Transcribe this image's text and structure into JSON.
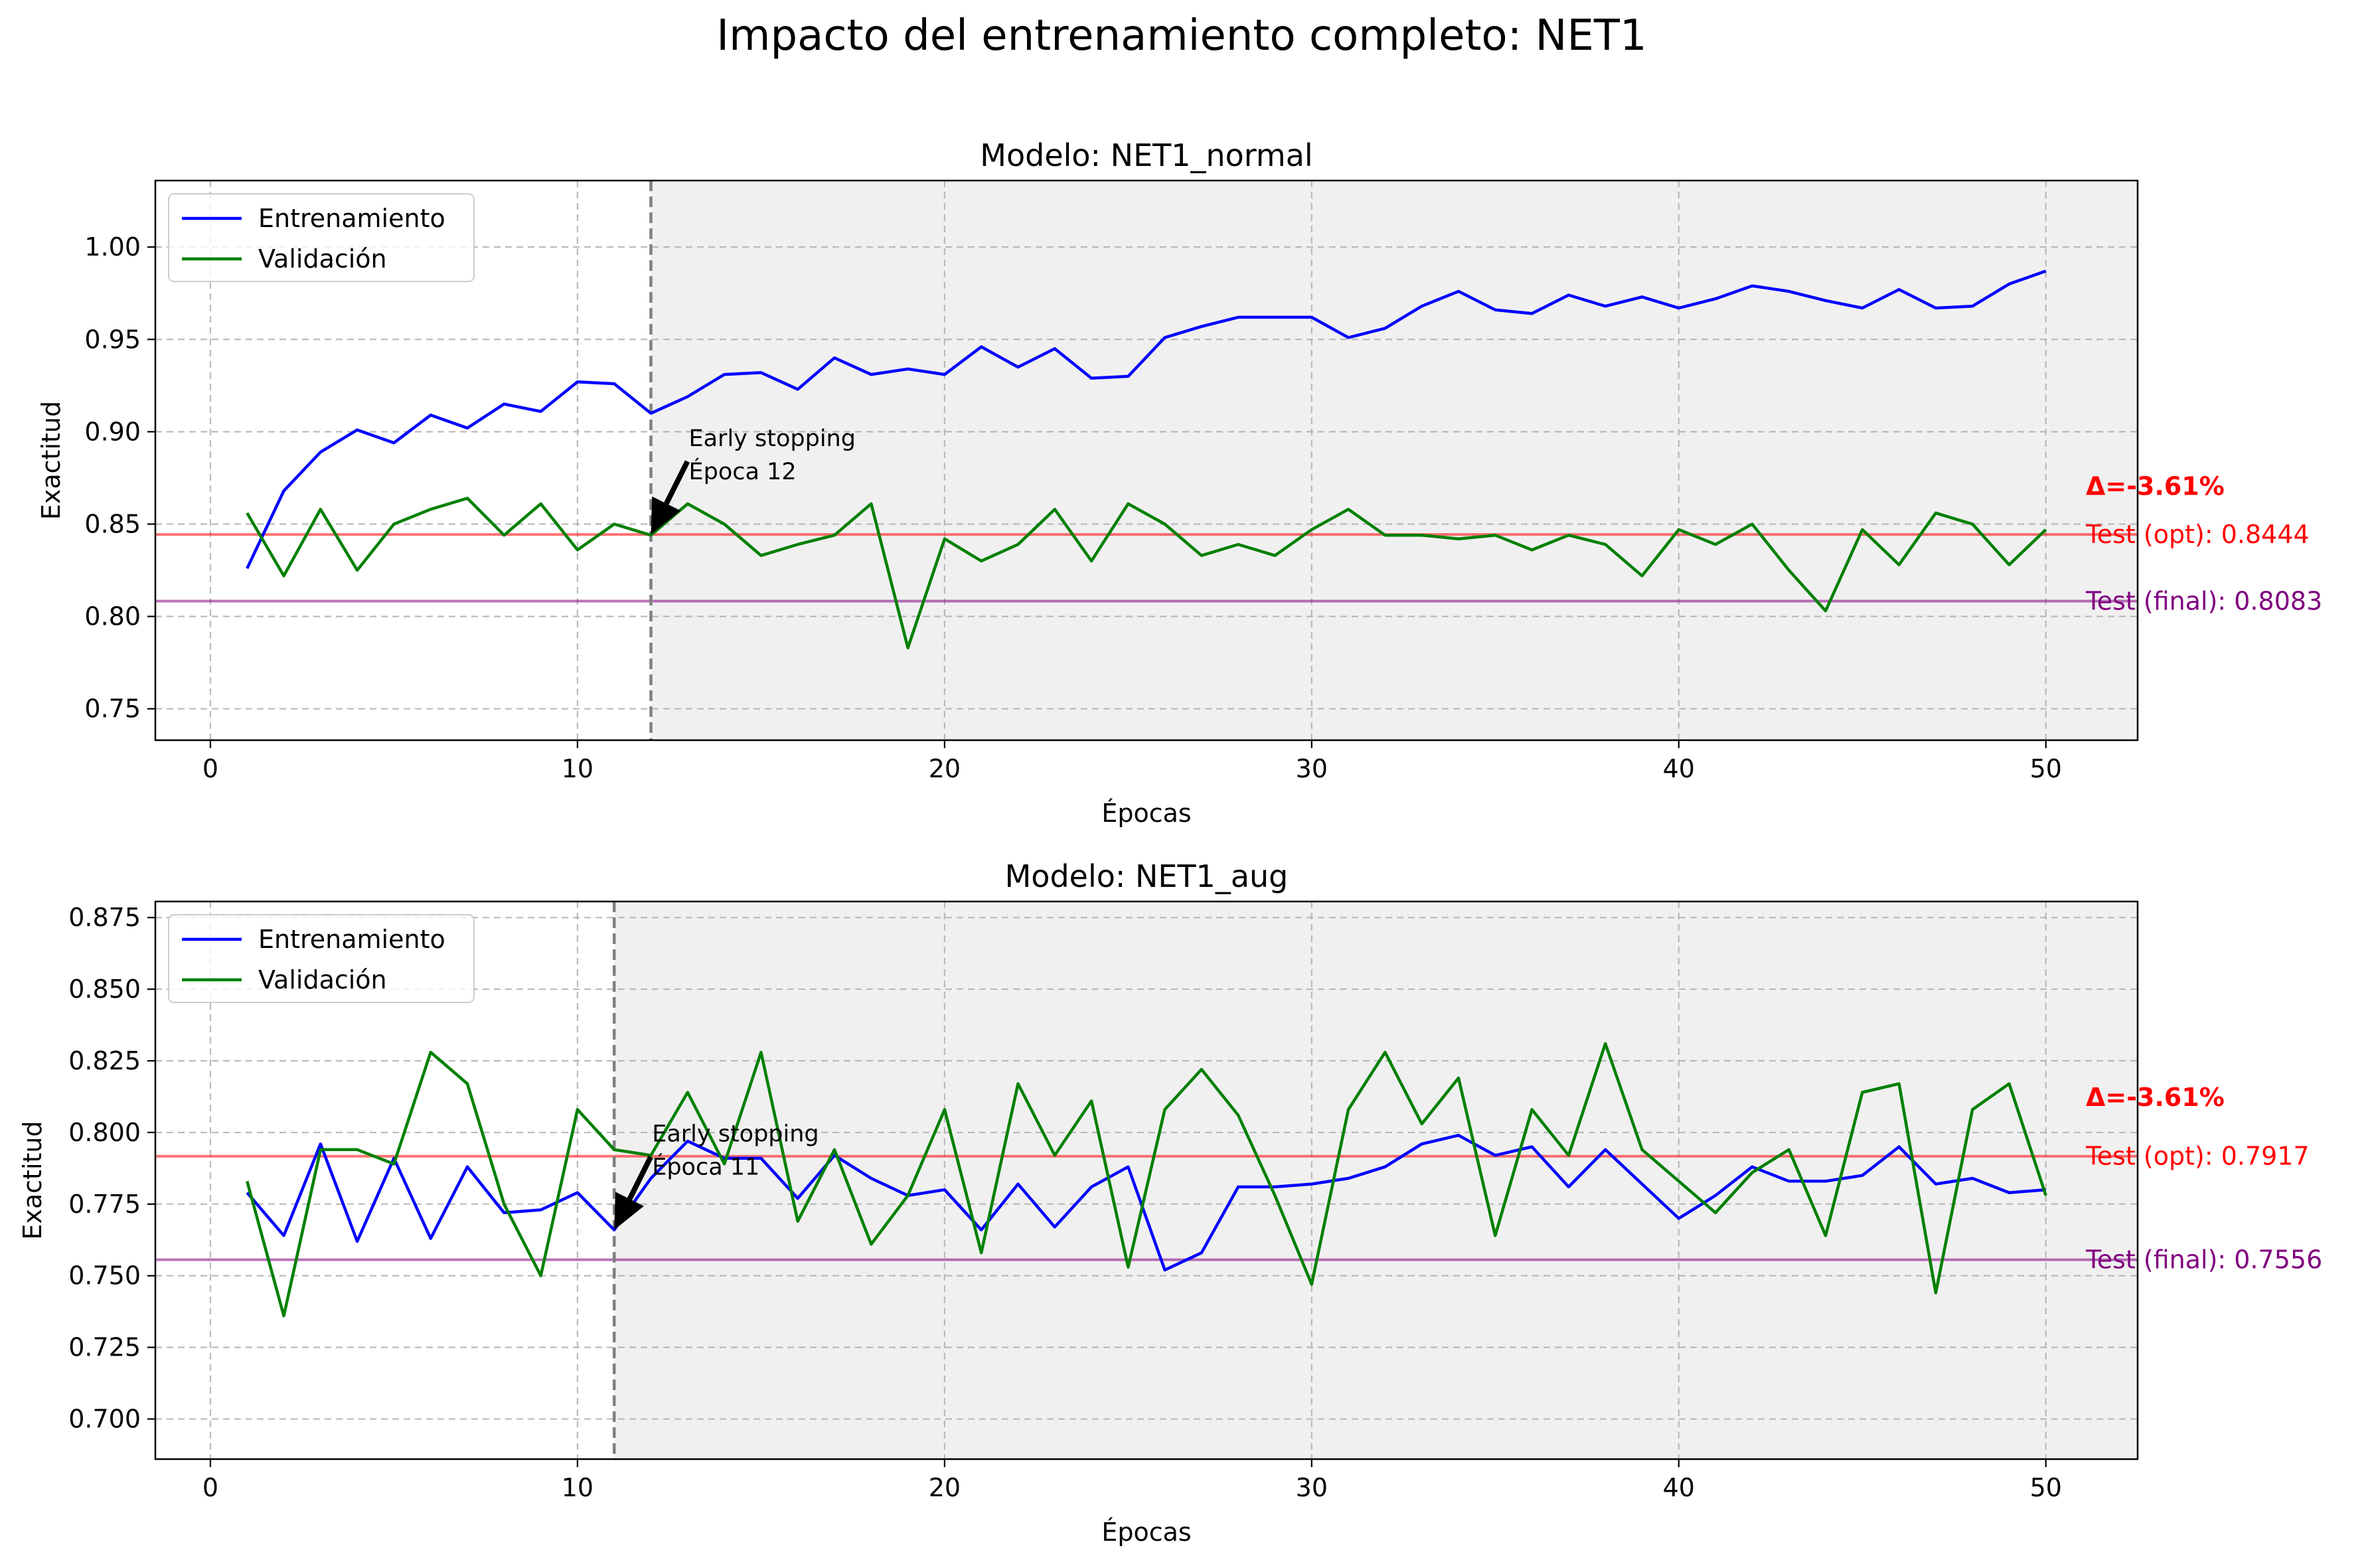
{
  "figure_title": "Impacto del entrenamiento completo: NET1",
  "colors": {
    "train": "#0000ff",
    "val": "#008000",
    "test_opt": "#ff0000",
    "test_final": "#800080",
    "post_es_shade": "#f0f0f0",
    "grid": "#b0b0b0"
  },
  "chart_data": [
    {
      "type": "line",
      "title": "Modelo: NET1_normal",
      "xlabel": "Épocas",
      "ylabel": "Exactitud",
      "xlim": [
        -1.5,
        52.5
      ],
      "ylim": [
        0.733,
        1.036
      ],
      "xticks": [
        0,
        10,
        20,
        30,
        40,
        50
      ],
      "yticks": [
        0.75,
        0.8,
        0.85,
        0.9,
        0.95,
        1.0
      ],
      "ytick_labels": [
        "0.75",
        "0.80",
        "0.85",
        "0.90",
        "0.95",
        "1.00"
      ],
      "grid": true,
      "legend_location": "upper left",
      "early_stopping": {
        "epoch": 12,
        "label_lines": [
          "Early stopping",
          "Época 12"
        ],
        "arrow_target_y": 0.8444
      },
      "hlines": [
        {
          "name": "test_opt",
          "y": 0.8444,
          "label": "Test (opt): 0.8444"
        },
        {
          "name": "test_final",
          "y": 0.8083,
          "label": "Test (final): 0.8083"
        }
      ],
      "delta_label": "Δ=-3.61%",
      "delta_y": 0.8705,
      "series": [
        {
          "name": "Entrenamiento",
          "x": [
            1,
            2,
            3,
            4,
            5,
            6,
            7,
            8,
            9,
            10,
            11,
            12,
            13,
            14,
            15,
            16,
            17,
            18,
            19,
            20,
            21,
            22,
            23,
            24,
            25,
            26,
            27,
            28,
            29,
            30,
            31,
            32,
            33,
            34,
            35,
            36,
            37,
            38,
            39,
            40,
            41,
            42,
            43,
            44,
            45,
            46,
            47,
            48,
            49,
            50
          ],
          "values": [
            0.826,
            0.868,
            0.889,
            0.901,
            0.894,
            0.909,
            0.902,
            0.915,
            0.911,
            0.927,
            0.926,
            0.91,
            0.919,
            0.931,
            0.932,
            0.923,
            0.94,
            0.931,
            0.934,
            0.931,
            0.946,
            0.935,
            0.945,
            0.929,
            0.93,
            0.951,
            0.957,
            0.962,
            0.962,
            0.962,
            0.951,
            0.956,
            0.968,
            0.976,
            0.966,
            0.964,
            0.974,
            0.968,
            0.973,
            0.967,
            0.972,
            0.979,
            0.976,
            0.971,
            0.967,
            0.977,
            0.967,
            0.968,
            0.98,
            0.987
          ]
        },
        {
          "name": "Validación",
          "x": [
            1,
            2,
            3,
            4,
            5,
            6,
            7,
            8,
            9,
            10,
            11,
            12,
            13,
            14,
            15,
            16,
            17,
            18,
            19,
            20,
            21,
            22,
            23,
            24,
            25,
            26,
            27,
            28,
            29,
            30,
            31,
            32,
            33,
            34,
            35,
            36,
            37,
            38,
            39,
            40,
            41,
            42,
            43,
            44,
            45,
            46,
            47,
            48,
            49,
            50
          ],
          "values": [
            0.856,
            0.822,
            0.858,
            0.825,
            0.85,
            0.858,
            0.864,
            0.844,
            0.861,
            0.836,
            0.85,
            0.844,
            0.861,
            0.85,
            0.833,
            0.839,
            0.844,
            0.861,
            0.783,
            0.842,
            0.83,
            0.839,
            0.858,
            0.83,
            0.861,
            0.85,
            0.833,
            0.839,
            0.833,
            0.847,
            0.858,
            0.844,
            0.844,
            0.842,
            0.844,
            0.836,
            0.844,
            0.839,
            0.822,
            0.847,
            0.839,
            0.85,
            0.825,
            0.803,
            0.847,
            0.828,
            0.856,
            0.85,
            0.828,
            0.847
          ]
        }
      ]
    },
    {
      "type": "line",
      "title": "Modelo: NET1_aug",
      "xlabel": "Épocas",
      "ylabel": "Exactitud",
      "xlim": [
        -1.5,
        52.5
      ],
      "ylim": [
        0.686,
        0.8806
      ],
      "xticks": [
        0,
        10,
        20,
        30,
        40,
        50
      ],
      "yticks": [
        0.7,
        0.725,
        0.75,
        0.775,
        0.8,
        0.825,
        0.85,
        0.875
      ],
      "ytick_labels": [
        "0.700",
        "0.725",
        "0.750",
        "0.775",
        "0.800",
        "0.825",
        "0.850",
        "0.875"
      ],
      "grid": true,
      "legend_location": "upper left",
      "early_stopping": {
        "epoch": 11,
        "label_lines": [
          "Early stopping",
          "Época 11"
        ],
        "arrow_target_y": 0.766
      },
      "hlines": [
        {
          "name": "test_opt",
          "y": 0.7917,
          "label": "Test (opt): 0.7917"
        },
        {
          "name": "test_final",
          "y": 0.7556,
          "label": "Test (final): 0.7556"
        }
      ],
      "delta_label": "Δ=-3.61%",
      "delta_y": 0.8123,
      "series": [
        {
          "name": "Entrenamiento",
          "x": [
            1,
            2,
            3,
            4,
            5,
            6,
            7,
            8,
            9,
            10,
            11,
            12,
            13,
            14,
            15,
            16,
            17,
            18,
            19,
            20,
            21,
            22,
            23,
            24,
            25,
            26,
            27,
            28,
            29,
            30,
            31,
            32,
            33,
            34,
            35,
            36,
            37,
            38,
            39,
            40,
            41,
            42,
            43,
            44,
            45,
            46,
            47,
            48,
            49,
            50
          ],
          "values": [
            0.779,
            0.764,
            0.796,
            0.762,
            0.791,
            0.763,
            0.788,
            0.772,
            0.773,
            0.779,
            0.766,
            0.784,
            0.797,
            0.791,
            0.791,
            0.777,
            0.792,
            0.784,
            0.778,
            0.78,
            0.766,
            0.782,
            0.767,
            0.781,
            0.788,
            0.752,
            0.758,
            0.781,
            0.781,
            0.782,
            0.784,
            0.788,
            0.796,
            0.799,
            0.792,
            0.795,
            0.781,
            0.794,
            0.782,
            0.77,
            0.778,
            0.788,
            0.783,
            0.783,
            0.785,
            0.795,
            0.782,
            0.784,
            0.779,
            0.78
          ]
        },
        {
          "name": "Validación",
          "x": [
            1,
            2,
            3,
            4,
            5,
            6,
            7,
            8,
            9,
            10,
            11,
            12,
            13,
            14,
            15,
            16,
            17,
            18,
            19,
            20,
            21,
            22,
            23,
            24,
            25,
            26,
            27,
            28,
            29,
            30,
            31,
            32,
            33,
            34,
            35,
            36,
            37,
            38,
            39,
            40,
            41,
            42,
            43,
            44,
            45,
            46,
            47,
            48,
            49,
            50
          ],
          "values": [
            0.783,
            0.736,
            0.794,
            0.794,
            0.789,
            0.828,
            0.817,
            0.775,
            0.75,
            0.808,
            0.794,
            0.792,
            0.814,
            0.789,
            0.828,
            0.769,
            0.794,
            0.761,
            0.778,
            0.808,
            0.758,
            0.817,
            0.792,
            0.811,
            0.753,
            0.808,
            0.822,
            0.806,
            0.778,
            0.747,
            0.808,
            0.828,
            0.803,
            0.819,
            0.764,
            0.808,
            0.792,
            0.831,
            0.794,
            0.783,
            0.772,
            0.786,
            0.794,
            0.764,
            0.814,
            0.817,
            0.744,
            0.808,
            0.817,
            0.778
          ]
        }
      ]
    }
  ]
}
